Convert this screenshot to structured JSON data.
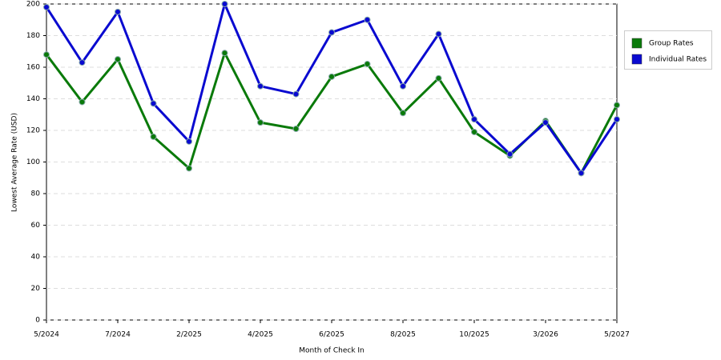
{
  "chart_data": {
    "type": "line",
    "x_label": "Month of Check In",
    "y_label": "Lowest Average Rate (USD)",
    "categories": [
      "5/2024",
      null,
      "7/2024",
      null,
      "2/2025",
      null,
      "4/2025",
      null,
      "6/2025",
      null,
      "8/2025",
      null,
      "10/2025",
      null,
      "3/2026",
      null,
      "5/2027"
    ],
    "series": [
      {
        "name": "Group Rates",
        "color": "#0a7a0a",
        "values": [
          168,
          138,
          165,
          116,
          96,
          169,
          125,
          121,
          154,
          162,
          131,
          153,
          119,
          104,
          126,
          93,
          136
        ]
      },
      {
        "name": "Individual Rates",
        "color": "#0a0ad0",
        "values": [
          198,
          163,
          195,
          137,
          113,
          200,
          148,
          143,
          182,
          190,
          148,
          181,
          127,
          105,
          125,
          93,
          127
        ]
      }
    ],
    "ylim": [
      0,
      200
    ],
    "yticks": [
      0,
      20,
      40,
      60,
      80,
      100,
      120,
      140,
      160,
      180,
      200
    ],
    "grid": true,
    "legend": "right"
  }
}
